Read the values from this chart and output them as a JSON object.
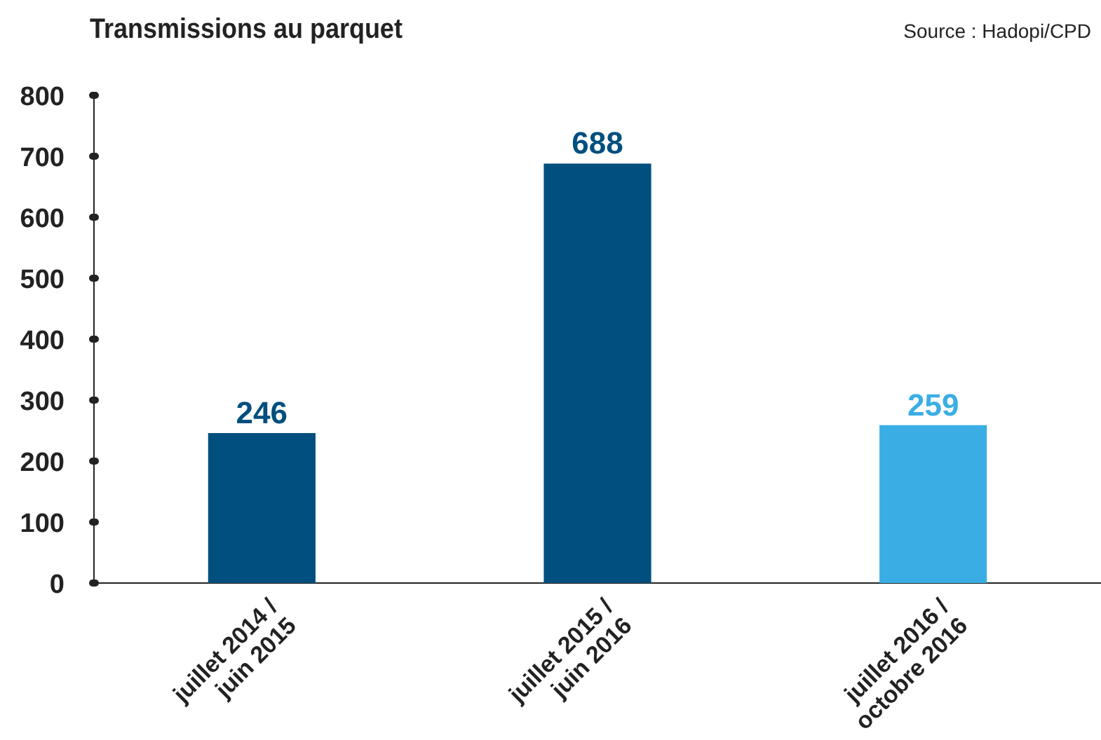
{
  "chart_data": {
    "type": "bar",
    "title": "Transmissions au parquet",
    "annotations": [
      "Source : Hadopi/CPD"
    ],
    "categories": [
      "juillet 2014 /\njuin 2015",
      "juillet 2015 /\njuin 2016",
      "juillet 2016 /\noctobre 2016"
    ],
    "values": [
      246,
      688,
      259
    ],
    "colors": [
      "#004f7f",
      "#004f7f",
      "#3aaee4"
    ],
    "ylim": [
      0,
      800
    ],
    "yticks": [
      0,
      100,
      200,
      300,
      400,
      500,
      600,
      700,
      800
    ],
    "data_labels": true,
    "grid": false
  }
}
